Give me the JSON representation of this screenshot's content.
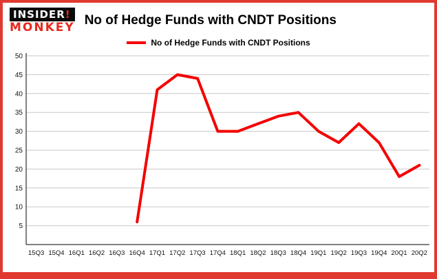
{
  "header": {
    "logo_line1": "INSIDER",
    "logo_mark": "!",
    "logo_line2": "MONKEY",
    "title": "No of Hedge Funds with CNDT Positions"
  },
  "legend": {
    "label": "No of Hedge Funds with CNDT Positions"
  },
  "colors": {
    "line": "#f40000",
    "border": "#e03a30",
    "grid": "#c8c8c8",
    "axis": "#000000",
    "tick_text": "#111111"
  },
  "chart_data": {
    "type": "line",
    "title": "No of Hedge Funds with CNDT Positions",
    "xlabel": "",
    "ylabel": "",
    "ylim": [
      0,
      50
    ],
    "yticks": [
      5,
      10,
      15,
      20,
      25,
      30,
      35,
      40,
      45,
      50
    ],
    "grid": true,
    "legend_position": "top-center",
    "categories": [
      "15Q3",
      "15Q4",
      "16Q1",
      "16Q2",
      "16Q3",
      "16Q4",
      "17Q1",
      "17Q2",
      "17Q3",
      "17Q4",
      "18Q1",
      "18Q2",
      "18Q3",
      "18Q4",
      "19Q1",
      "19Q2",
      "19Q3",
      "19Q4",
      "20Q1",
      "20Q2"
    ],
    "series": [
      {
        "name": "No of Hedge Funds with CNDT Positions",
        "values": [
          null,
          null,
          null,
          null,
          null,
          6,
          41,
          45,
          44,
          30,
          30,
          32,
          34,
          35,
          30,
          27,
          32,
          27,
          18,
          21
        ]
      }
    ]
  }
}
